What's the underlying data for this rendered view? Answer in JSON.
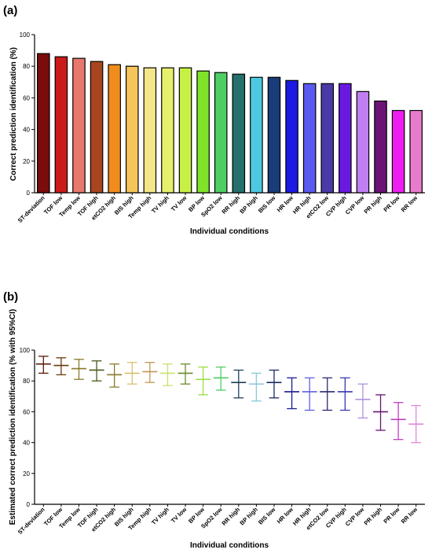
{
  "chart_data": [
    {
      "type": "bar",
      "panel_label": "(a)",
      "ylabel": "Correct prediction identification (%)",
      "xlabel": "Individual conditions",
      "ylim": [
        0,
        100
      ],
      "yticks": [
        0,
        20,
        40,
        60,
        80,
        100
      ],
      "categories": [
        "ST-deviation",
        "TOF low",
        "Temp low",
        "TOF high",
        "etCO2 high",
        "BIS high",
        "Temp high",
        "TV high",
        "TV low",
        "BP low",
        "SpO2 low",
        "RR high",
        "BP high",
        "BIS low",
        "HR low",
        "HR high",
        "etCO2 low",
        "CVP high",
        "CVP low",
        "PR high",
        "PR low",
        "RR low"
      ],
      "values": [
        88,
        86,
        85,
        83,
        81,
        80,
        79,
        79,
        79,
        77,
        76,
        75,
        73,
        73,
        71,
        69,
        69,
        69,
        64,
        58,
        52,
        52
      ],
      "colors": [
        "#7a0c0c",
        "#cc1a1a",
        "#e8786e",
        "#a8451e",
        "#f08c1c",
        "#f5c45a",
        "#f3e58a",
        "#e6f06a",
        "#c7f045",
        "#7fe32a",
        "#4ecf63",
        "#25706d",
        "#4ec8e0",
        "#1a3c78",
        "#1a1ae0",
        "#5a5af0",
        "#4a3aa8",
        "#6a1ae0",
        "#c07ef0",
        "#6a1476",
        "#ee1ef0",
        "#e87ccc"
      ],
      "grid": false
    },
    {
      "type": "errorbar",
      "panel_label": "(b)",
      "ylabel": "Estimated correct prediction identification (% with 95%CI)",
      "xlabel": "Individual conditions",
      "ylim": [
        0,
        100
      ],
      "yticks": [
        0,
        20,
        40,
        60,
        80,
        100
      ],
      "categories": [
        "ST-deviation",
        "TOF low",
        "Temp low",
        "TOF high",
        "etCO2 high",
        "BIS high",
        "Temp high",
        "TV high",
        "TV low",
        "BP low",
        "SpO2 low",
        "RR high",
        "BP high",
        "BIS low",
        "HR low",
        "HR high",
        "etCO2 low",
        "CVP high",
        "CVP low",
        "PR high",
        "PR low",
        "RR low"
      ],
      "estimate": [
        91,
        90,
        88,
        87,
        84,
        85,
        86,
        85,
        85,
        81,
        82,
        79,
        78,
        79,
        73,
        73,
        73,
        73,
        68,
        60,
        55,
        52
      ],
      "lower": [
        85,
        84,
        81,
        80,
        76,
        78,
        79,
        77,
        78,
        71,
        74,
        69,
        67,
        69,
        62,
        61,
        61,
        61,
        56,
        48,
        42,
        40
      ],
      "upper": [
        96,
        95,
        94,
        93,
        91,
        92,
        92,
        91,
        91,
        89,
        89,
        87,
        85,
        87,
        82,
        82,
        82,
        82,
        78,
        71,
        66,
        64
      ],
      "colors": [
        "#5a1a0a",
        "#6a3a0a",
        "#8a7a2a",
        "#4a5a1a",
        "#8a7a2a",
        "#d8c070",
        "#c09850",
        "#c8e070",
        "#6a8a2a",
        "#98e040",
        "#4ecf63",
        "#203f5a",
        "#88c8d8",
        "#1a2a60",
        "#1a1a90",
        "#6060e0",
        "#2a2a70",
        "#3a3ab0",
        "#b090e0",
        "#6a1476",
        "#c040c0",
        "#e088d8"
      ],
      "grid": false
    }
  ]
}
